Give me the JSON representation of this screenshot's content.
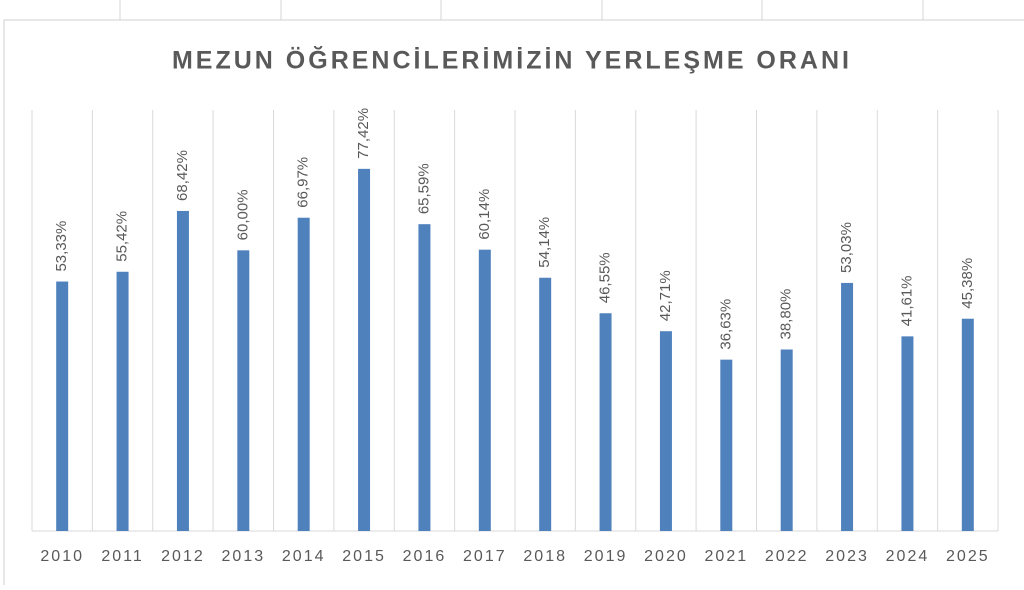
{
  "chart_data": {
    "type": "bar",
    "title": "MEZUN ÖĞRENCİLERİMİZİN YERLEŞME ORANI",
    "categories": [
      "2010",
      "2011",
      "2012",
      "2013",
      "2014",
      "2015",
      "2016",
      "2017",
      "2018",
      "2019",
      "2020",
      "2021",
      "2022",
      "2023",
      "2024",
      "2025"
    ],
    "values": [
      53.33,
      55.42,
      68.42,
      60.0,
      66.97,
      77.42,
      65.59,
      60.14,
      54.14,
      46.55,
      42.71,
      36.63,
      38.8,
      53.03,
      41.61,
      45.38
    ],
    "value_labels": [
      "53,33%",
      "55,42%",
      "68,42%",
      "60,00%",
      "66,97%",
      "77,42%",
      "65,59%",
      "60,14%",
      "54,14%",
      "46,55%",
      "42,71%",
      "36,63%",
      "38,80%",
      "53,03%",
      "41,61%",
      "45,38%"
    ],
    "color": "#4f81bd",
    "ylim": [
      0,
      90
    ],
    "category_grid": true
  }
}
